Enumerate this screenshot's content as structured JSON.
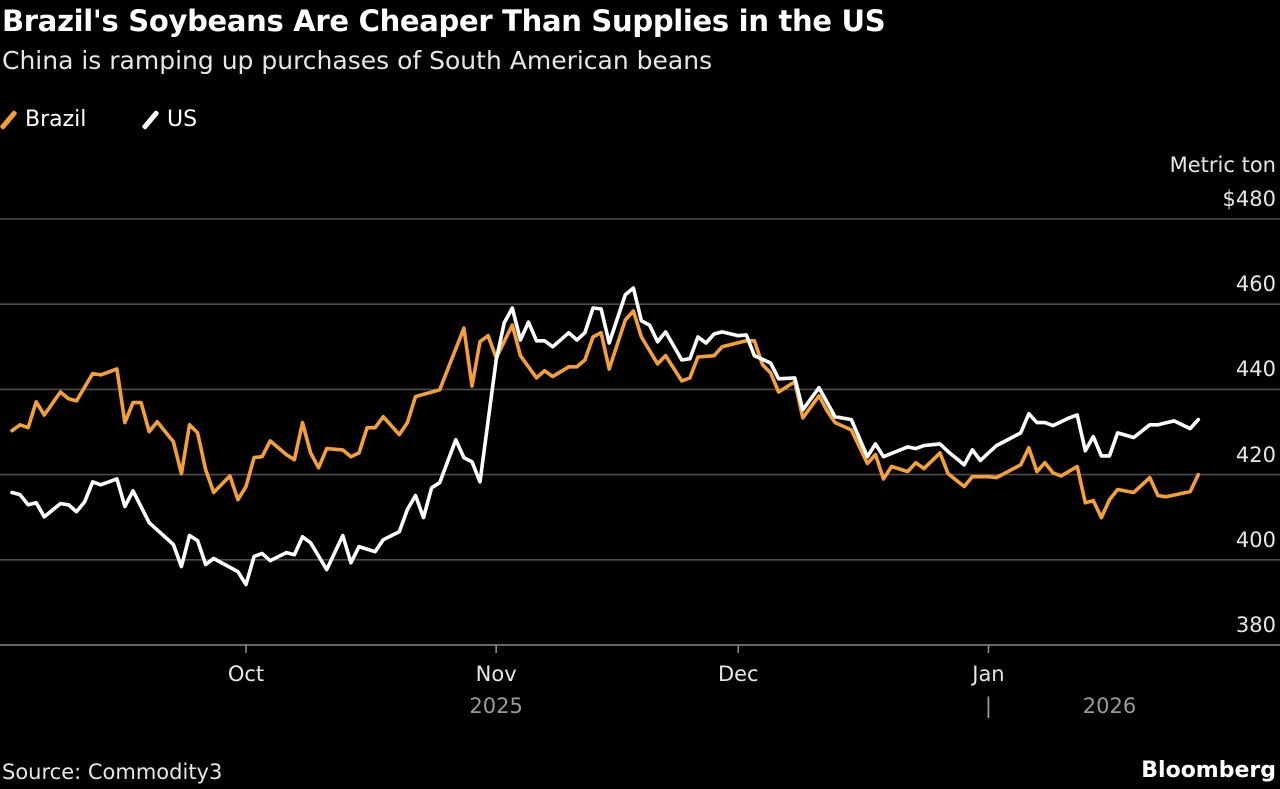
{
  "chart_data": {
    "type": "line",
    "title": "Brazil's Soybeans Are Cheaper Than Supplies in the US",
    "subtitle": "China is ramping up purchases of South American beans",
    "ylabel": "Metric ton",
    "ylim": [
      380,
      480
    ],
    "yticks": [
      "$480",
      "460",
      "440",
      "420",
      "400",
      "380"
    ],
    "ytick_values": [
      480,
      460,
      440,
      420,
      400,
      380
    ],
    "xticks": [
      {
        "label": "Oct",
        "date": "2025-10-01"
      },
      {
        "label": "Nov",
        "date": "2025-11-01"
      },
      {
        "label": "Dec",
        "date": "2025-12-01"
      },
      {
        "label": "Jan",
        "date": "2026-01-01"
      }
    ],
    "year_labels": [
      {
        "label": "2025",
        "date": "2025-11-01"
      },
      {
        "label": "2026",
        "date": "2026-01-16"
      }
    ],
    "year_divider": "|",
    "grid": true,
    "legend_position": "top-left",
    "source": "Source: Commodity3",
    "brand": "Bloomberg",
    "series": [
      {
        "name": "Brazil",
        "color": "#f5a033",
        "points": [
          [
            "2025-09-02",
            430.3
          ],
          [
            "2025-09-03",
            431.7
          ],
          [
            "2025-09-04",
            431.0
          ],
          [
            "2025-09-05",
            437.1
          ],
          [
            "2025-09-06",
            434.0
          ],
          [
            "2025-09-08",
            439.4
          ],
          [
            "2025-09-09",
            437.8
          ],
          [
            "2025-09-10",
            437.3
          ],
          [
            "2025-09-12",
            443.7
          ],
          [
            "2025-09-13",
            443.4
          ],
          [
            "2025-09-15",
            444.8
          ],
          [
            "2025-09-16",
            432.2
          ],
          [
            "2025-09-17",
            436.9
          ],
          [
            "2025-09-18",
            436.9
          ],
          [
            "2025-09-19",
            430.1
          ],
          [
            "2025-09-20",
            432.4
          ],
          [
            "2025-09-22",
            427.7
          ],
          [
            "2025-09-23",
            420.2
          ],
          [
            "2025-09-24",
            431.7
          ],
          [
            "2025-09-25",
            429.8
          ],
          [
            "2025-09-26",
            421.1
          ],
          [
            "2025-09-27",
            415.8
          ],
          [
            "2025-09-29",
            419.7
          ],
          [
            "2025-09-30",
            414.1
          ],
          [
            "2025-10-01",
            417.2
          ],
          [
            "2025-10-02",
            424.0
          ],
          [
            "2025-10-03",
            424.2
          ],
          [
            "2025-10-04",
            427.9
          ],
          [
            "2025-10-06",
            424.7
          ],
          [
            "2025-10-07",
            423.5
          ],
          [
            "2025-10-08",
            432.2
          ],
          [
            "2025-10-09",
            425.1
          ],
          [
            "2025-10-10",
            421.6
          ],
          [
            "2025-10-11",
            426.1
          ],
          [
            "2025-10-13",
            425.8
          ],
          [
            "2025-10-14",
            424.2
          ],
          [
            "2025-10-15",
            425.1
          ],
          [
            "2025-10-16",
            431.0
          ],
          [
            "2025-10-17",
            431.0
          ],
          [
            "2025-10-18",
            433.6
          ],
          [
            "2025-10-20",
            429.4
          ],
          [
            "2025-10-21",
            432.2
          ],
          [
            "2025-10-22",
            438.3
          ],
          [
            "2025-10-25",
            439.9
          ],
          [
            "2025-10-28",
            454.4
          ],
          [
            "2025-10-29",
            440.8
          ],
          [
            "2025-10-30",
            451.2
          ],
          [
            "2025-10-31",
            452.6
          ],
          [
            "2025-11-01",
            447.4
          ],
          [
            "2025-11-03",
            455.1
          ],
          [
            "2025-11-04",
            447.9
          ],
          [
            "2025-11-06",
            442.7
          ],
          [
            "2025-11-07",
            444.4
          ],
          [
            "2025-11-08",
            443.0
          ],
          [
            "2025-11-10",
            445.3
          ],
          [
            "2025-11-11",
            445.3
          ],
          [
            "2025-11-12",
            446.9
          ],
          [
            "2025-11-13",
            452.3
          ],
          [
            "2025-11-14",
            453.3
          ],
          [
            "2025-11-15",
            444.8
          ],
          [
            "2025-11-17",
            456.3
          ],
          [
            "2025-11-18",
            458.4
          ],
          [
            "2025-11-19",
            452.3
          ],
          [
            "2025-11-21",
            446.0
          ],
          [
            "2025-11-22",
            447.9
          ],
          [
            "2025-11-24",
            442.0
          ],
          [
            "2025-11-25",
            442.7
          ],
          [
            "2025-11-26",
            447.6
          ],
          [
            "2025-11-28",
            447.9
          ],
          [
            "2025-11-29",
            450.0
          ],
          [
            "2025-12-02",
            451.4
          ],
          [
            "2025-12-03",
            451.4
          ],
          [
            "2025-12-04",
            445.8
          ],
          [
            "2025-12-05",
            443.9
          ],
          [
            "2025-12-06",
            439.4
          ],
          [
            "2025-12-08",
            441.8
          ],
          [
            "2025-12-09",
            433.3
          ],
          [
            "2025-12-11",
            438.5
          ],
          [
            "2025-12-12",
            435.0
          ],
          [
            "2025-12-13",
            432.2
          ],
          [
            "2025-12-15",
            430.5
          ],
          [
            "2025-12-17",
            422.6
          ],
          [
            "2025-12-18",
            424.7
          ],
          [
            "2025-12-19",
            419.0
          ],
          [
            "2025-12-20",
            421.9
          ],
          [
            "2025-12-22",
            420.7
          ],
          [
            "2025-12-23",
            422.8
          ],
          [
            "2025-12-24",
            421.4
          ],
          [
            "2025-12-26",
            425.1
          ],
          [
            "2025-12-27",
            420.2
          ],
          [
            "2025-12-29",
            417.2
          ],
          [
            "2025-12-30",
            419.5
          ],
          [
            "2026-01-01",
            419.5
          ],
          [
            "2026-01-02",
            419.3
          ],
          [
            "2026-01-05",
            422.3
          ],
          [
            "2026-01-06",
            426.3
          ],
          [
            "2026-01-07",
            420.7
          ],
          [
            "2026-01-08",
            422.8
          ],
          [
            "2026-01-09",
            420.4
          ],
          [
            "2026-01-10",
            419.7
          ],
          [
            "2026-01-12",
            421.9
          ],
          [
            "2026-01-13",
            413.4
          ],
          [
            "2026-01-14",
            413.9
          ],
          [
            "2026-01-15",
            409.9
          ],
          [
            "2026-01-16",
            414.1
          ],
          [
            "2026-01-17",
            416.5
          ],
          [
            "2026-01-19",
            415.8
          ],
          [
            "2026-01-21",
            419.3
          ],
          [
            "2026-01-22",
            415.1
          ],
          [
            "2026-01-23",
            414.8
          ],
          [
            "2026-01-26",
            416.0
          ],
          [
            "2026-01-27",
            420.0
          ]
        ]
      },
      {
        "name": "US",
        "color": "#ffffff",
        "points": [
          [
            "2025-09-02",
            415.8
          ],
          [
            "2025-09-03",
            415.3
          ],
          [
            "2025-09-04",
            412.9
          ],
          [
            "2025-09-05",
            413.4
          ],
          [
            "2025-09-06",
            410.1
          ],
          [
            "2025-09-08",
            413.2
          ],
          [
            "2025-09-09",
            412.9
          ],
          [
            "2025-09-10",
            411.3
          ],
          [
            "2025-09-11",
            413.6
          ],
          [
            "2025-09-12",
            418.3
          ],
          [
            "2025-09-13",
            417.6
          ],
          [
            "2025-09-15",
            419.0
          ],
          [
            "2025-09-16",
            412.5
          ],
          [
            "2025-09-17",
            416.2
          ],
          [
            "2025-09-19",
            408.7
          ],
          [
            "2025-09-22",
            403.6
          ],
          [
            "2025-09-23",
            398.4
          ],
          [
            "2025-09-24",
            405.7
          ],
          [
            "2025-09-25",
            404.5
          ],
          [
            "2025-09-26",
            398.9
          ],
          [
            "2025-09-27",
            400.3
          ],
          [
            "2025-09-30",
            397.2
          ],
          [
            "2025-10-01",
            394.2
          ],
          [
            "2025-10-02",
            400.8
          ],
          [
            "2025-10-03",
            401.5
          ],
          [
            "2025-10-04",
            399.8
          ],
          [
            "2025-10-06",
            401.7
          ],
          [
            "2025-10-07",
            401.2
          ],
          [
            "2025-10-08",
            405.4
          ],
          [
            "2025-10-09",
            404.0
          ],
          [
            "2025-10-11",
            397.7
          ],
          [
            "2025-10-13",
            405.7
          ],
          [
            "2025-10-14",
            399.3
          ],
          [
            "2025-10-15",
            403.1
          ],
          [
            "2025-10-17",
            401.9
          ],
          [
            "2025-10-18",
            404.7
          ],
          [
            "2025-10-20",
            406.6
          ],
          [
            "2025-10-21",
            411.8
          ],
          [
            "2025-10-22",
            415.1
          ],
          [
            "2025-10-23",
            409.9
          ],
          [
            "2025-10-24",
            416.9
          ],
          [
            "2025-10-25",
            418.1
          ],
          [
            "2025-10-27",
            428.2
          ],
          [
            "2025-10-28",
            424.0
          ],
          [
            "2025-10-29",
            423.0
          ],
          [
            "2025-10-30",
            418.3
          ],
          [
            "2025-11-01",
            446.9
          ],
          [
            "2025-11-02",
            455.6
          ],
          [
            "2025-11-03",
            459.1
          ],
          [
            "2025-11-04",
            451.6
          ],
          [
            "2025-11-05",
            455.8
          ],
          [
            "2025-11-06",
            451.4
          ],
          [
            "2025-11-07",
            451.4
          ],
          [
            "2025-11-08",
            450.0
          ],
          [
            "2025-11-10",
            453.3
          ],
          [
            "2025-11-11",
            451.6
          ],
          [
            "2025-11-12",
            453.3
          ],
          [
            "2025-11-13",
            459.1
          ],
          [
            "2025-11-14",
            458.9
          ],
          [
            "2025-11-15",
            450.9
          ],
          [
            "2025-11-17",
            462.2
          ],
          [
            "2025-11-18",
            463.8
          ],
          [
            "2025-11-19",
            456.1
          ],
          [
            "2025-11-20",
            455.1
          ],
          [
            "2025-11-21",
            451.2
          ],
          [
            "2025-11-22",
            453.5
          ],
          [
            "2025-11-24",
            446.9
          ],
          [
            "2025-11-25",
            447.2
          ],
          [
            "2025-11-26",
            452.3
          ],
          [
            "2025-11-27",
            450.9
          ],
          [
            "2025-11-28",
            453.0
          ],
          [
            "2025-11-29",
            453.5
          ],
          [
            "2025-12-01",
            452.6
          ],
          [
            "2025-12-02",
            452.8
          ],
          [
            "2025-12-03",
            447.9
          ],
          [
            "2025-12-05",
            446.2
          ],
          [
            "2025-12-06",
            442.5
          ],
          [
            "2025-12-08",
            442.7
          ],
          [
            "2025-12-09",
            435.2
          ],
          [
            "2025-12-11",
            440.4
          ],
          [
            "2025-12-13",
            433.6
          ],
          [
            "2025-12-15",
            432.9
          ],
          [
            "2025-12-17",
            424.2
          ],
          [
            "2025-12-18",
            427.2
          ],
          [
            "2025-12-19",
            424.2
          ],
          [
            "2025-12-22",
            426.5
          ],
          [
            "2025-12-23",
            426.1
          ],
          [
            "2025-12-24",
            426.8
          ],
          [
            "2025-12-26",
            427.2
          ],
          [
            "2025-12-27",
            425.4
          ],
          [
            "2025-12-29",
            422.3
          ],
          [
            "2025-12-30",
            425.8
          ],
          [
            "2025-12-31",
            423.3
          ],
          [
            "2026-01-01",
            425.1
          ],
          [
            "2026-01-02",
            426.8
          ],
          [
            "2026-01-05",
            429.8
          ],
          [
            "2026-01-06",
            434.3
          ],
          [
            "2026-01-07",
            432.2
          ],
          [
            "2026-01-08",
            432.2
          ],
          [
            "2026-01-09",
            431.5
          ],
          [
            "2026-01-11",
            433.3
          ],
          [
            "2026-01-12",
            434.0
          ],
          [
            "2026-01-13",
            425.6
          ],
          [
            "2026-01-14",
            428.9
          ],
          [
            "2026-01-15",
            424.4
          ],
          [
            "2026-01-16",
            424.4
          ],
          [
            "2026-01-17",
            429.8
          ],
          [
            "2026-01-19",
            428.7
          ],
          [
            "2026-01-21",
            431.7
          ],
          [
            "2026-01-22",
            431.7
          ],
          [
            "2026-01-24",
            432.6
          ],
          [
            "2026-01-26",
            430.8
          ],
          [
            "2026-01-27",
            432.9
          ]
        ]
      }
    ]
  }
}
